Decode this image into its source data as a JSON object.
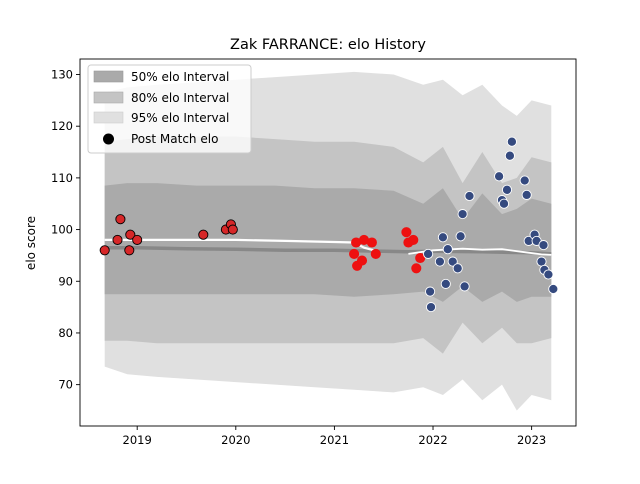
{
  "chart_data": {
    "type": "scatter",
    "title": "Zak FARRANCE: elo History",
    "xlabel": "",
    "ylabel": "elo score",
    "xlim": [
      2018.42,
      2023.45
    ],
    "ylim": [
      62,
      133
    ],
    "xticks": [
      {
        "value": 2019.0,
        "label": "2019"
      },
      {
        "value": 2020.0,
        "label": "2020"
      },
      {
        "value": 2021.0,
        "label": "2021"
      },
      {
        "value": 2022.0,
        "label": "2022"
      },
      {
        "value": 2023.0,
        "label": "2023"
      }
    ],
    "yticks": [
      {
        "value": 70,
        "label": "70"
      },
      {
        "value": 80,
        "label": "80"
      },
      {
        "value": 90,
        "label": "90"
      },
      {
        "value": 100,
        "label": "100"
      },
      {
        "value": 110,
        "label": "110"
      },
      {
        "value": 120,
        "label": "120"
      },
      {
        "value": 130,
        "label": "130"
      }
    ],
    "grid": false,
    "legend_position": "top-left",
    "legend": [
      {
        "label": "50% elo Interval",
        "kind": "patch",
        "color": "#aaaaaa"
      },
      {
        "label": "80% elo Interval",
        "kind": "patch",
        "color": "#c4c4c4"
      },
      {
        "label": "95% elo Interval",
        "kind": "patch",
        "color": "#e0e0e0"
      },
      {
        "label": "Post Match elo",
        "kind": "marker",
        "color": "#000000"
      }
    ],
    "intervals": {
      "x": [
        2018.67,
        2018.9,
        2019.2,
        2019.6,
        2020.0,
        2020.4,
        2020.8,
        2021.2,
        2021.6,
        2021.9,
        2022.1,
        2022.3,
        2022.5,
        2022.7,
        2022.85,
        2023.0,
        2023.2
      ],
      "band95": {
        "upper": [
          126.5,
          127.5,
          128,
          128.5,
          129,
          129.5,
          130,
          130.5,
          130,
          128,
          129,
          126,
          128,
          124,
          122,
          125,
          124
        ],
        "lower": [
          73.5,
          72,
          71.5,
          71,
          70.5,
          70,
          69.5,
          69,
          68.5,
          69.5,
          68,
          71,
          67,
          70,
          65,
          68,
          67
        ]
      },
      "band80": {
        "upper": [
          117,
          117.5,
          118,
          118,
          118,
          117.5,
          117,
          117,
          116,
          113,
          116,
          109,
          115,
          109,
          110,
          114,
          113
        ],
        "lower": [
          78.5,
          78.5,
          78,
          78,
          78,
          78,
          78,
          78,
          78,
          79,
          76,
          82,
          78,
          81,
          78,
          78,
          79
        ]
      },
      "band50": {
        "upper": [
          108.5,
          109,
          109,
          108.5,
          108.5,
          108.5,
          108,
          108,
          107.5,
          105,
          108,
          102,
          107,
          103,
          104,
          106,
          105
        ],
        "lower": [
          87.5,
          87.5,
          87.5,
          87.5,
          87.5,
          87.5,
          87.5,
          87,
          87.5,
          88,
          86,
          89,
          86,
          88,
          86,
          87,
          87
        ]
      }
    },
    "lines": {
      "white": {
        "x": [
          2018.67,
          2019.0,
          2019.5,
          2020.0,
          2020.5,
          2021.0,
          2021.2,
          2021.3,
          2021.4
        ],
        "y": [
          98,
          98,
          98,
          98,
          97.8,
          97.6,
          97.5,
          96.5,
          96.0
        ]
      },
      "dark": {
        "x": [
          2018.67,
          2019.0,
          2019.5,
          2020.0,
          2020.5,
          2021.0,
          2021.5,
          2021.75,
          2022.0,
          2022.5,
          2023.0,
          2023.2
        ],
        "y": [
          96.5,
          96.5,
          96.3,
          96.2,
          96,
          96,
          95.8,
          95.7,
          95.8,
          95.7,
          95.5,
          95.3
        ]
      },
      "whiteLate": {
        "x": [
          2021.75,
          2022.0,
          2022.3,
          2022.5,
          2022.7,
          2022.9,
          2023.1,
          2023.2
        ],
        "y": [
          95.3,
          96,
          96.3,
          96.1,
          96.2,
          95.7,
          95.2,
          95.1
        ]
      }
    },
    "series": [
      {
        "name": "Post Match elo",
        "style": "dark-red",
        "fill": "#d62728",
        "stroke": "#000000",
        "points": [
          {
            "x": 2018.67,
            "y": 96
          },
          {
            "x": 2018.8,
            "y": 98
          },
          {
            "x": 2018.83,
            "y": 102
          },
          {
            "x": 2018.92,
            "y": 96
          },
          {
            "x": 2018.93,
            "y": 99
          },
          {
            "x": 2019.0,
            "y": 98
          },
          {
            "x": 2019.67,
            "y": 99
          },
          {
            "x": 2019.9,
            "y": 100
          },
          {
            "x": 2019.95,
            "y": 101
          },
          {
            "x": 2019.97,
            "y": 100
          }
        ]
      },
      {
        "name": "Post Match elo",
        "style": "red",
        "fill": "#ee1111",
        "stroke": "#ee1111",
        "points": [
          {
            "x": 2021.2,
            "y": 95.3
          },
          {
            "x": 2021.22,
            "y": 97.5
          },
          {
            "x": 2021.23,
            "y": 93
          },
          {
            "x": 2021.28,
            "y": 94
          },
          {
            "x": 2021.3,
            "y": 98
          },
          {
            "x": 2021.38,
            "y": 97.5
          },
          {
            "x": 2021.42,
            "y": 95.3
          },
          {
            "x": 2021.73,
            "y": 99.5
          },
          {
            "x": 2021.75,
            "y": 97.5
          },
          {
            "x": 2021.8,
            "y": 98
          },
          {
            "x": 2021.83,
            "y": 92.5
          },
          {
            "x": 2021.87,
            "y": 94.5
          }
        ]
      },
      {
        "name": "Post Match elo",
        "style": "blue",
        "fill": "#354a7f",
        "stroke": "#ffffff",
        "points": [
          {
            "x": 2021.95,
            "y": 95.3
          },
          {
            "x": 2021.97,
            "y": 88
          },
          {
            "x": 2021.98,
            "y": 85
          },
          {
            "x": 2022.07,
            "y": 93.8
          },
          {
            "x": 2022.1,
            "y": 98.5
          },
          {
            "x": 2022.13,
            "y": 89.5
          },
          {
            "x": 2022.15,
            "y": 96.2
          },
          {
            "x": 2022.2,
            "y": 93.8
          },
          {
            "x": 2022.25,
            "y": 92.5
          },
          {
            "x": 2022.28,
            "y": 98.7
          },
          {
            "x": 2022.3,
            "y": 103
          },
          {
            "x": 2022.32,
            "y": 89
          },
          {
            "x": 2022.37,
            "y": 106.5
          },
          {
            "x": 2022.67,
            "y": 110.3
          },
          {
            "x": 2022.7,
            "y": 105.7
          },
          {
            "x": 2022.72,
            "y": 105
          },
          {
            "x": 2022.75,
            "y": 107.7
          },
          {
            "x": 2022.78,
            "y": 114.3
          },
          {
            "x": 2022.8,
            "y": 117
          },
          {
            "x": 2022.93,
            "y": 109.5
          },
          {
            "x": 2022.95,
            "y": 106.7
          },
          {
            "x": 2022.97,
            "y": 97.8
          },
          {
            "x": 2023.03,
            "y": 99
          },
          {
            "x": 2023.05,
            "y": 97.8
          },
          {
            "x": 2023.1,
            "y": 93.8
          },
          {
            "x": 2023.12,
            "y": 97
          },
          {
            "x": 2023.13,
            "y": 92.2
          },
          {
            "x": 2023.17,
            "y": 91.3
          },
          {
            "x": 2023.22,
            "y": 88.5
          }
        ]
      }
    ]
  }
}
